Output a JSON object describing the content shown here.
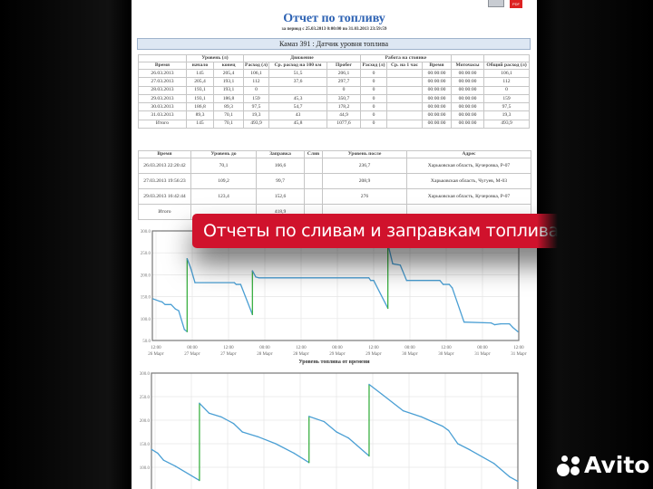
{
  "report": {
    "title": "Отчет по топливу",
    "period": "за период с 25.03.2013 0:00:00 по 31.03.2013 23:59:59",
    "vehicle_header": "Камаз 391 : Датчик уровня топлива",
    "pdf_label": "PDF"
  },
  "summary_table": {
    "group_headers": [
      "",
      "Уровень (л)",
      "Движение",
      "Работа на стоянке",
      "",
      ""
    ],
    "headers": [
      "Время",
      "начало",
      "конец",
      "Расход (л)",
      "Ср. расход на 100 км",
      "Пробег",
      "Расход (л)",
      "Ср. на 1 час",
      "Время",
      "Моточасы",
      "Общий расход (л)"
    ],
    "rows": [
      [
        "26.03.2013",
        "145",
        "205,4",
        "106,1",
        "51,5",
        "206,1",
        "0",
        "",
        "00:00:00",
        "00:00:00",
        "106,1"
      ],
      [
        "27.03.2013",
        "205,4",
        "193,1",
        "112",
        "37,6",
        "297,7",
        "0",
        "",
        "00:00:00",
        "00:00:00",
        "112"
      ],
      [
        "28.03.2013",
        "193,1",
        "193,1",
        "0",
        "",
        "0",
        "0",
        "",
        "00:00:00",
        "00:00:00",
        "0"
      ],
      [
        "29.03.2013",
        "193,1",
        "186,8",
        "159",
        "45,3",
        "350,7",
        "0",
        "",
        "00:00:00",
        "00:00:00",
        "159"
      ],
      [
        "30.03.2013",
        "186,8",
        "89,3",
        "97,5",
        "54,7",
        "178,2",
        "0",
        "",
        "00:00:00",
        "00:00:00",
        "97,5"
      ],
      [
        "31.03.2013",
        "89,3",
        "70,1",
        "19,3",
        "43",
        "44,9",
        "0",
        "",
        "00:00:00",
        "00:00:00",
        "19,3"
      ],
      [
        "Итого",
        "145",
        "70,1",
        "493,9",
        "45,8",
        "1077,6",
        "0",
        "",
        "00:00:00",
        "00:00:00",
        "493,9"
      ]
    ]
  },
  "refuel_table": {
    "headers": [
      "Время",
      "Уровень до",
      "Заправка",
      "Слив",
      "Уровень после",
      "Адрес"
    ],
    "rows": [
      [
        "26.03.2013 22:20:42",
        "70,1",
        "166,6",
        "",
        "236,7",
        "Харьковская область, Кучеровка, Р-07"
      ],
      [
        "27.03.2013 19:56:23",
        "109,2",
        "99,7",
        "",
        "208,9",
        "Харьковская область, Чугуев, М-03"
      ],
      [
        "29.03.2013 16:42:44",
        "123,4",
        "152,6",
        "",
        "276",
        "Харьковская область, Кучеровка, Р-07"
      ],
      [
        "Итого",
        "",
        "418,9",
        "",
        "",
        ""
      ]
    ]
  },
  "banner": {
    "text": "Отчеты по сливам и заправкам топлива"
  },
  "watermark": {
    "text": "Avito"
  },
  "colors": {
    "title": "#2d62b3",
    "banner": "#d0122c",
    "line": "#4a9fd4",
    "refuel": "#3cb043"
  },
  "chart_data": [
    {
      "type": "line",
      "title": "Уровень топлива от времени",
      "ylim": [
        50,
        300
      ],
      "grid": true,
      "yticks": [
        "300.0",
        "250.0",
        "200.0",
        "150.0",
        "100.0",
        "50.0"
      ],
      "xticks": [
        "12:00 26 Март",
        "00:00 27 Март",
        "12:00 27 Март",
        "00:00 28 Март",
        "12:00 28 Март",
        "00:00 29 Март",
        "12:00 29 Март",
        "00:00 30 Март",
        "12:00 30 Март",
        "00:00 31 Март",
        "12:00 31 Март"
      ],
      "x_unit": "hours since 26.03.2013 12:00",
      "points": [
        [
          -1,
          145
        ],
        [
          1,
          140
        ],
        [
          2,
          138
        ],
        [
          3,
          132
        ],
        [
          5,
          132
        ],
        [
          6.4,
          122
        ],
        [
          7.5,
          118
        ],
        [
          9.4,
          75
        ],
        [
          10.3,
          70.1
        ],
        [
          10.3,
          236.7
        ],
        [
          11.5,
          215
        ],
        [
          12.9,
          182
        ],
        [
          25.9,
          182
        ],
        [
          26.5,
          178
        ],
        [
          28,
          178
        ],
        [
          31.9,
          109.2
        ],
        [
          31.9,
          208.9
        ],
        [
          33,
          195
        ],
        [
          34,
          193
        ],
        [
          70.4,
          193
        ],
        [
          71,
          187
        ],
        [
          72,
          187
        ],
        [
          76.7,
          123.4
        ],
        [
          76.7,
          276
        ],
        [
          77,
          262
        ],
        [
          78.3,
          225
        ],
        [
          80.8,
          222
        ],
        [
          82.9,
          187
        ],
        [
          93.9,
          187
        ],
        [
          95,
          178
        ],
        [
          97,
          178
        ],
        [
          98,
          170
        ],
        [
          101.9,
          92
        ],
        [
          110.9,
          90
        ],
        [
          112,
          86
        ],
        [
          114,
          88
        ],
        [
          116.9,
          88
        ],
        [
          118,
          80
        ],
        [
          119.7,
          70.1
        ]
      ],
      "refuels": [
        10.3,
        31.9,
        76.7
      ]
    },
    {
      "type": "line",
      "ylim": [
        50,
        300
      ],
      "grid": true,
      "yticks": [
        "300.0",
        "250.0",
        "200.0",
        "150.0",
        "100.0",
        "50.0"
      ],
      "points": [
        [
          0,
          138
        ],
        [
          1.7,
          130
        ],
        [
          3.3,
          115
        ],
        [
          6.6,
          102
        ],
        [
          13.1,
          72
        ],
        [
          13.1,
          236
        ],
        [
          15.7,
          215
        ],
        [
          19,
          207
        ],
        [
          22.4,
          193
        ],
        [
          24.8,
          175
        ],
        [
          29,
          165
        ],
        [
          33.9,
          150
        ],
        [
          38.9,
          130
        ],
        [
          43,
          110
        ],
        [
          43,
          208
        ],
        [
          47.1,
          197
        ],
        [
          50.5,
          175
        ],
        [
          53.8,
          162
        ],
        [
          59.4,
          124
        ],
        [
          59.4,
          276
        ],
        [
          62.9,
          255
        ],
        [
          68.7,
          220
        ],
        [
          73.7,
          207
        ],
        [
          79.5,
          187
        ],
        [
          81.1,
          178
        ],
        [
          83.6,
          150
        ],
        [
          86.9,
          137
        ],
        [
          93.5,
          108
        ],
        [
          97.7,
          80
        ],
        [
          100,
          70
        ]
      ],
      "refuels": [
        13.1,
        43,
        59.4
      ]
    }
  ]
}
